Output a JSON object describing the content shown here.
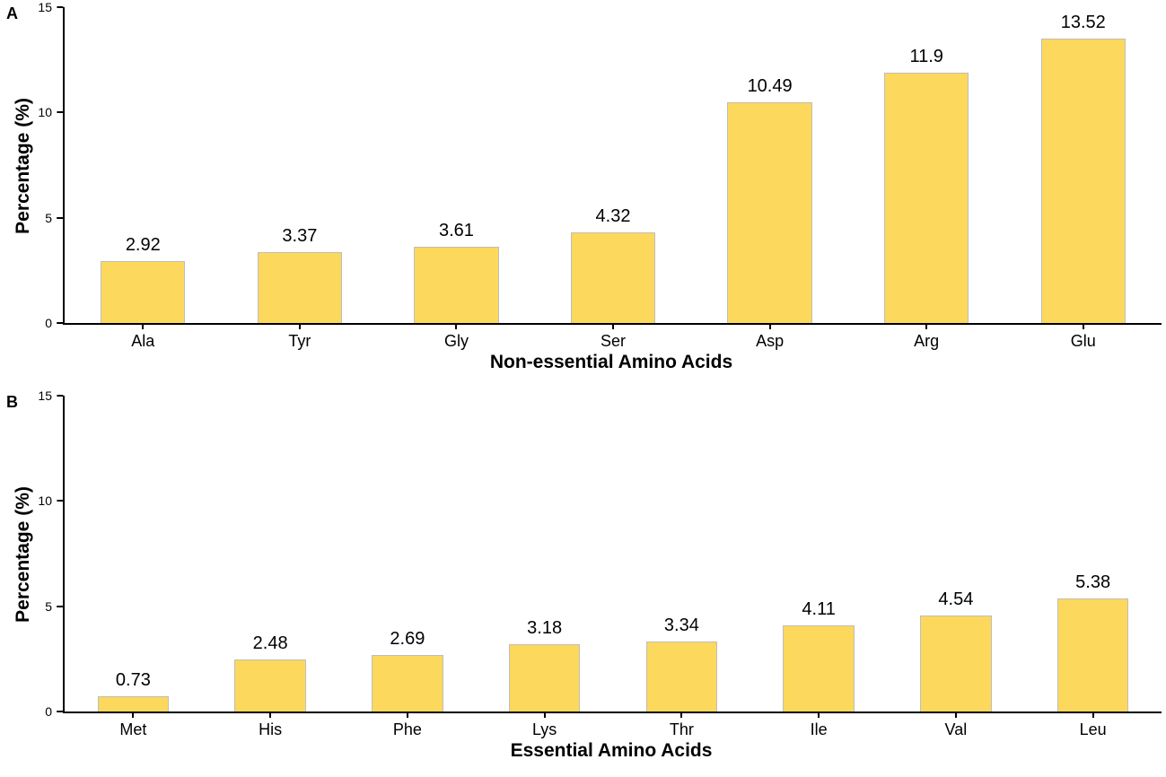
{
  "style": {
    "background": "#FFFFFF",
    "bar_fill": "#FCD85C",
    "bar_border": "#BEBEBE",
    "axis_color": "#000000",
    "text_color": "#000000"
  },
  "chart_data": [
    {
      "type": "bar",
      "panel_label": "A",
      "title": "",
      "xlabel": "Non-essential Amino Acids",
      "ylabel": "Percentage (%)",
      "categories": [
        "Ala",
        "Tyr",
        "Gly",
        "Ser",
        "Asp",
        "Arg",
        "Glu"
      ],
      "values": [
        2.92,
        3.37,
        3.61,
        4.32,
        10.49,
        11.9,
        13.52
      ],
      "value_labels": [
        "2.92",
        "3.37",
        "3.61",
        "4.32",
        "10.49",
        "11.9",
        "13.52"
      ],
      "ylim": [
        0,
        15
      ],
      "yticks": [
        0,
        5,
        10,
        15
      ],
      "grid": false,
      "legend": "none"
    },
    {
      "type": "bar",
      "panel_label": "B",
      "title": "",
      "xlabel": "Essential Amino Acids",
      "ylabel": "Percentage (%)",
      "categories": [
        "Met",
        "His",
        "Phe",
        "Lys",
        "Thr",
        "Ile",
        "Val",
        "Leu"
      ],
      "values": [
        0.73,
        2.48,
        2.69,
        3.18,
        3.34,
        4.11,
        4.54,
        5.38
      ],
      "value_labels": [
        "0.73",
        "2.48",
        "2.69",
        "3.18",
        "3.34",
        "4.11",
        "4.54",
        "5.38"
      ],
      "ylim": [
        0,
        15
      ],
      "yticks": [
        0,
        5,
        10,
        15
      ],
      "grid": false,
      "legend": "none"
    }
  ]
}
